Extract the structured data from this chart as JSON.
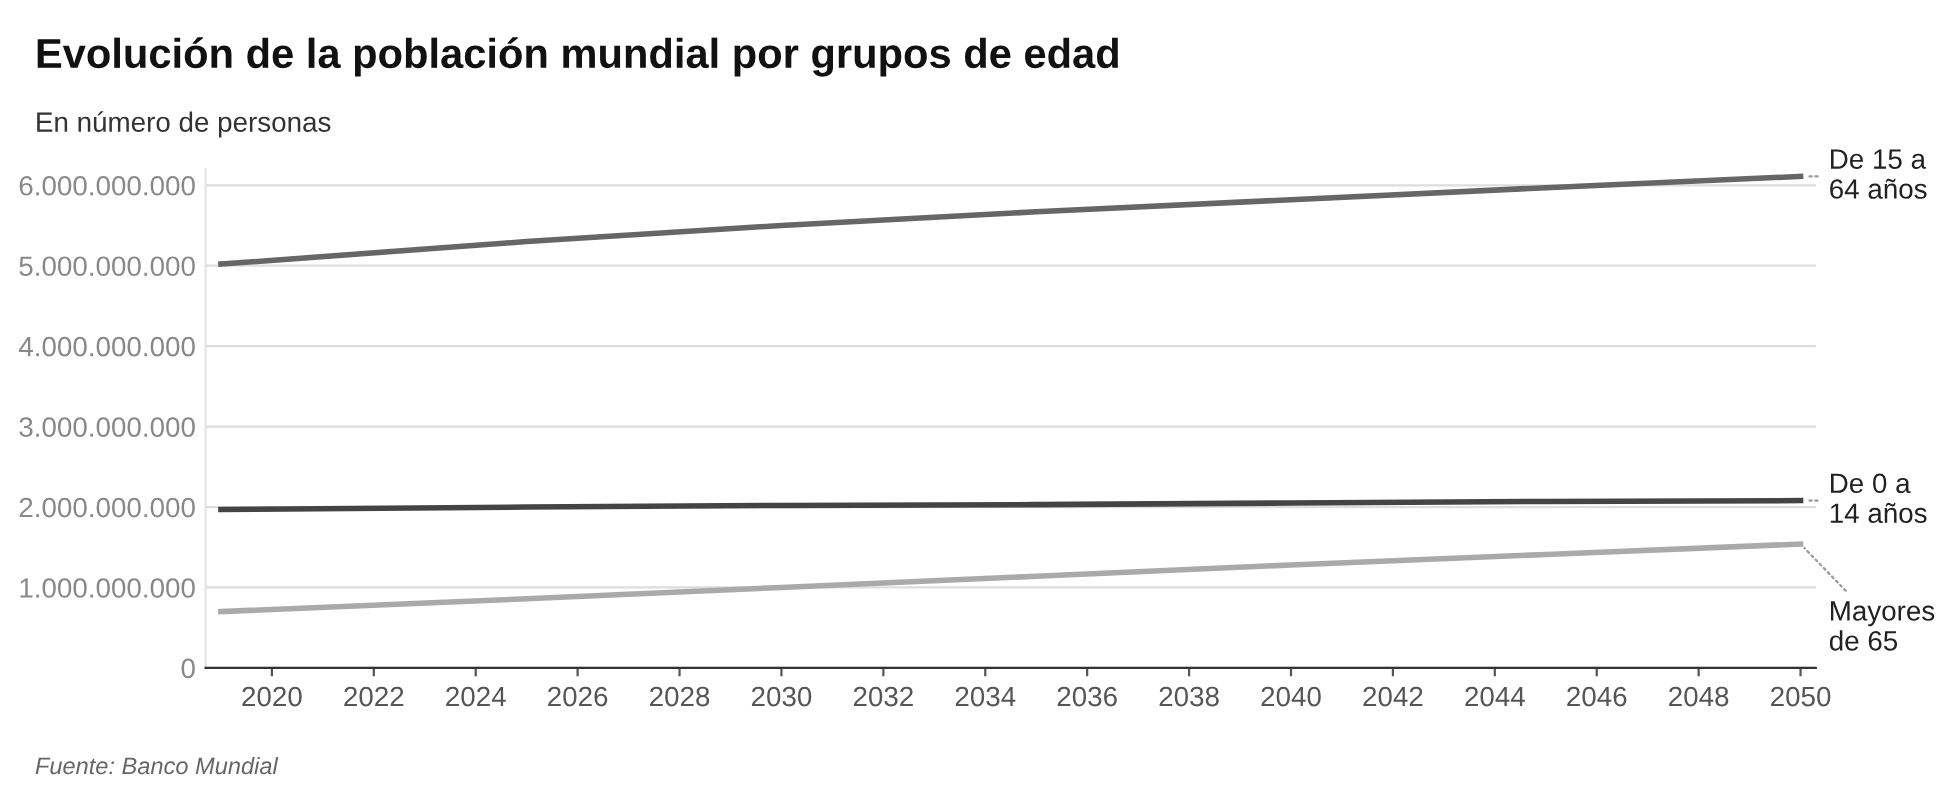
{
  "chart_data": {
    "type": "line",
    "title": "Evolución de la población mundial por grupos de edad",
    "subtitle": "En número de personas",
    "annotations": [
      "Fuente: Banco Mundial"
    ],
    "x": [
      2019,
      2025,
      2030,
      2035,
      2040,
      2045,
      2050
    ],
    "series": [
      {
        "name": "De 15 a\n64 años",
        "color": "#666666",
        "values": [
          5020000000,
          5300000000,
          5500000000,
          5670000000,
          5820000000,
          5970000000,
          6110000000
        ]
      },
      {
        "name": "De 0 a\n14 años",
        "color": "#444444",
        "values": [
          1970000000,
          2000000000,
          2020000000,
          2030000000,
          2050000000,
          2070000000,
          2080000000
        ]
      },
      {
        "name": "Mayores\nde 65",
        "color": "#aaaaaa",
        "values": [
          700000000,
          860000000,
          1000000000,
          1140000000,
          1280000000,
          1410000000,
          1540000000
        ]
      }
    ],
    "xlim": [
      2018.7,
      2050.3
    ],
    "xticks": [
      2020,
      2022,
      2024,
      2026,
      2028,
      2030,
      2032,
      2034,
      2036,
      2038,
      2040,
      2042,
      2044,
      2046,
      2048,
      2050
    ],
    "ylim": [
      0,
      6200000000
    ],
    "yticks": [
      0,
      {
        "value": 1000000000,
        "label": "1.000.000.000"
      },
      {
        "value": 2000000000,
        "label": "2.000.000.000"
      },
      {
        "value": 3000000000,
        "label": "3.000.000.000"
      },
      {
        "value": 4000000000,
        "label": "4.000.000.000"
      },
      {
        "value": 5000000000,
        "label": "5.000.000.000"
      },
      {
        "value": 6000000000,
        "label": "6.000.000.000"
      }
    ],
    "grid": "y",
    "legend": false,
    "marker": "none",
    "line_style": "solid"
  }
}
